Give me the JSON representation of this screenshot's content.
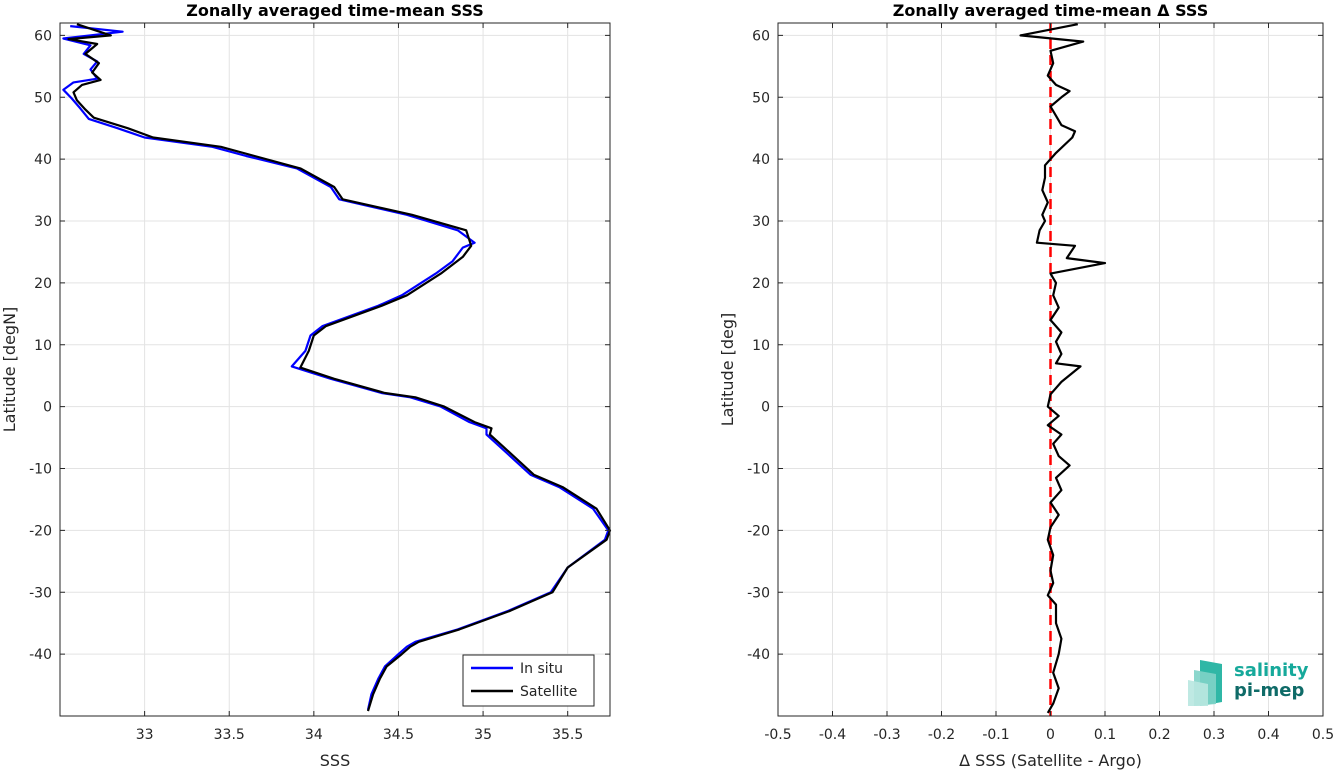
{
  "chart_data": [
    {
      "type": "line",
      "title": "Zonally averaged time-mean SSS",
      "xlabel": "SSS",
      "ylabel": "Latitude [degN]",
      "xlim": [
        32.5,
        35.75
      ],
      "ylim": [
        -50,
        62
      ],
      "xticks": [
        33,
        33.5,
        34,
        34.5,
        35,
        35.5
      ],
      "yticks": [
        -40,
        -30,
        -20,
        -10,
        0,
        10,
        20,
        30,
        40,
        50,
        60
      ],
      "grid": true,
      "legend": "bottom-right",
      "series": [
        {
          "name": "In situ",
          "color": "#0000ff",
          "points": [
            [
              32.56,
              61.5
            ],
            [
              32.87,
              60.6
            ],
            [
              32.52,
              59.5
            ],
            [
              32.68,
              58.4
            ],
            [
              32.64,
              57.0
            ],
            [
              32.72,
              55.8
            ],
            [
              32.68,
              54.5
            ],
            [
              32.72,
              53.0
            ],
            [
              32.58,
              52.4
            ],
            [
              32.52,
              51.2
            ],
            [
              32.57,
              49.8
            ],
            [
              32.62,
              48.2
            ],
            [
              32.67,
              46.5
            ],
            [
              32.84,
              45.0
            ],
            [
              33.0,
              43.5
            ],
            [
              33.4,
              42.0
            ],
            [
              33.6,
              40.5
            ],
            [
              33.9,
              38.5
            ],
            [
              34.1,
              35.5
            ],
            [
              34.15,
              33.5
            ],
            [
              34.55,
              31.0
            ],
            [
              34.85,
              28.5
            ],
            [
              34.95,
              26.5
            ],
            [
              34.88,
              25.7
            ],
            [
              34.82,
              23.5
            ],
            [
              34.72,
              21.5
            ],
            [
              34.52,
              18.0
            ],
            [
              34.38,
              16.3
            ],
            [
              34.05,
              13.0
            ],
            [
              33.98,
              11.5
            ],
            [
              33.95,
              9.0
            ],
            [
              33.87,
              6.5
            ],
            [
              34.1,
              4.5
            ],
            [
              34.4,
              2.2
            ],
            [
              34.57,
              1.5
            ],
            [
              34.75,
              0.0
            ],
            [
              34.92,
              -2.5
            ],
            [
              35.02,
              -3.5
            ],
            [
              35.02,
              -4.5
            ],
            [
              35.1,
              -6.5
            ],
            [
              35.2,
              -9.0
            ],
            [
              35.28,
              -11.0
            ],
            [
              35.45,
              -13.0
            ],
            [
              35.65,
              -16.5
            ],
            [
              35.74,
              -20.0
            ],
            [
              35.72,
              -21.5
            ],
            [
              35.5,
              -26.0
            ],
            [
              35.4,
              -30.0
            ],
            [
              35.15,
              -33.0
            ],
            [
              34.85,
              -36.0
            ],
            [
              34.6,
              -38.0
            ],
            [
              34.55,
              -38.8
            ],
            [
              34.5,
              -40.0
            ],
            [
              34.42,
              -42.0
            ],
            [
              34.38,
              -44.0
            ],
            [
              34.34,
              -46.5
            ],
            [
              34.32,
              -49.0
            ]
          ]
        },
        {
          "name": "Satellite",
          "color": "#000000",
          "points": [
            [
              32.6,
              61.8
            ],
            [
              32.8,
              60.0
            ],
            [
              32.55,
              59.4
            ],
            [
              32.72,
              58.6
            ],
            [
              32.65,
              57.0
            ],
            [
              32.73,
              55.5
            ],
            [
              32.69,
              54.0
            ],
            [
              32.74,
              52.8
            ],
            [
              32.63,
              52.0
            ],
            [
              32.58,
              50.8
            ],
            [
              32.6,
              49.5
            ],
            [
              32.65,
              48.0
            ],
            [
              32.7,
              46.7
            ],
            [
              32.9,
              45.0
            ],
            [
              33.05,
              43.5
            ],
            [
              33.45,
              42.0
            ],
            [
              33.65,
              40.5
            ],
            [
              33.92,
              38.5
            ],
            [
              34.12,
              35.5
            ],
            [
              34.17,
              33.5
            ],
            [
              34.58,
              31.0
            ],
            [
              34.9,
              28.5
            ],
            [
              34.93,
              26.0
            ],
            [
              34.88,
              24.2
            ],
            [
              34.75,
              21.5
            ],
            [
              34.55,
              18.0
            ],
            [
              34.4,
              16.3
            ],
            [
              34.07,
              13.0
            ],
            [
              34.0,
              11.5
            ],
            [
              33.97,
              9.0
            ],
            [
              33.92,
              6.3
            ],
            [
              34.12,
              4.5
            ],
            [
              34.42,
              2.2
            ],
            [
              34.6,
              1.5
            ],
            [
              34.77,
              0.0
            ],
            [
              34.95,
              -2.5
            ],
            [
              35.05,
              -3.5
            ],
            [
              35.04,
              -4.5
            ],
            [
              35.12,
              -6.5
            ],
            [
              35.22,
              -9.0
            ],
            [
              35.3,
              -11.0
            ],
            [
              35.47,
              -13.0
            ],
            [
              35.67,
              -16.5
            ],
            [
              35.75,
              -20.0
            ],
            [
              35.73,
              -21.5
            ],
            [
              35.5,
              -26.0
            ],
            [
              35.41,
              -30.0
            ],
            [
              35.16,
              -33.0
            ],
            [
              34.86,
              -36.0
            ],
            [
              34.62,
              -38.0
            ],
            [
              34.57,
              -38.8
            ],
            [
              34.52,
              -40.0
            ],
            [
              34.43,
              -42.0
            ],
            [
              34.39,
              -44.0
            ],
            [
              34.35,
              -46.5
            ],
            [
              34.32,
              -49.2
            ]
          ]
        }
      ]
    },
    {
      "type": "line",
      "title": "Zonally averaged time-mean Δ SSS",
      "xlabel": "Δ SSS (Satellite - Argo)",
      "ylabel": "Latitude [deg]",
      "xlim": [
        -0.5,
        0.5
      ],
      "ylim": [
        -50,
        62
      ],
      "xticks": [
        -0.5,
        -0.4,
        -0.3,
        -0.2,
        -0.1,
        0,
        0.1,
        0.2,
        0.3,
        0.4,
        0.5
      ],
      "yticks": [
        -40,
        -30,
        -20,
        -10,
        0,
        10,
        20,
        30,
        40,
        50,
        60
      ],
      "grid": true,
      "series": [
        {
          "color": "#000000",
          "points": [
            [
              0.05,
              61.8
            ],
            [
              -0.055,
              60.0
            ],
            [
              0.06,
              59.0
            ],
            [
              0.0,
              57.5
            ],
            [
              0.005,
              55.5
            ],
            [
              -0.005,
              53.5
            ],
            [
              0.01,
              52.0
            ],
            [
              0.035,
              51.0
            ],
            [
              0.02,
              50.0
            ],
            [
              0.0,
              48.5
            ],
            [
              0.01,
              47.0
            ],
            [
              0.02,
              45.5
            ],
            [
              0.045,
              44.5
            ],
            [
              0.04,
              43.5
            ],
            [
              0.01,
              41.0
            ],
            [
              -0.01,
              39.0
            ],
            [
              -0.01,
              37.0
            ],
            [
              -0.015,
              35.0
            ],
            [
              -0.005,
              33.0
            ],
            [
              -0.015,
              31.0
            ],
            [
              -0.01,
              30.0
            ],
            [
              -0.02,
              28.5
            ],
            [
              -0.025,
              26.5
            ],
            [
              0.045,
              26.0
            ],
            [
              0.03,
              24.0
            ],
            [
              0.1,
              23.2
            ],
            [
              0.0,
              21.5
            ],
            [
              0.01,
              20.0
            ],
            [
              0.005,
              18.0
            ],
            [
              0.015,
              16.0
            ],
            [
              0.0,
              14.0
            ],
            [
              0.02,
              12.0
            ],
            [
              0.01,
              10.5
            ],
            [
              0.02,
              8.5
            ],
            [
              0.01,
              7.0
            ],
            [
              0.055,
              6.5
            ],
            [
              0.02,
              4.0
            ],
            [
              0.0,
              2.0
            ],
            [
              -0.005,
              0.0
            ],
            [
              0.015,
              -1.5
            ],
            [
              -0.005,
              -3.0
            ],
            [
              0.02,
              -4.5
            ],
            [
              0.005,
              -6.0
            ],
            [
              0.015,
              -8.0
            ],
            [
              0.035,
              -9.5
            ],
            [
              0.01,
              -11.5
            ],
            [
              0.02,
              -13.5
            ],
            [
              0.0,
              -15.5
            ],
            [
              0.015,
              -17.5
            ],
            [
              0.0,
              -19.5
            ],
            [
              -0.005,
              -21.5
            ],
            [
              0.005,
              -24.0
            ],
            [
              0.0,
              -26.5
            ],
            [
              0.005,
              -28.5
            ],
            [
              -0.005,
              -30.5
            ],
            [
              0.01,
              -32.0
            ],
            [
              0.01,
              -35.0
            ],
            [
              0.02,
              -37.5
            ],
            [
              0.015,
              -40.0
            ],
            [
              0.005,
              -43.0
            ],
            [
              0.015,
              -45.5
            ],
            [
              0.005,
              -48.0
            ],
            [
              -0.005,
              -49.5
            ]
          ]
        }
      ],
      "reference_line": {
        "x": 0,
        "color": "#ff0000",
        "style": "dashed"
      }
    }
  ],
  "logo": {
    "line1": "salinity",
    "line2": "pi-mep"
  }
}
